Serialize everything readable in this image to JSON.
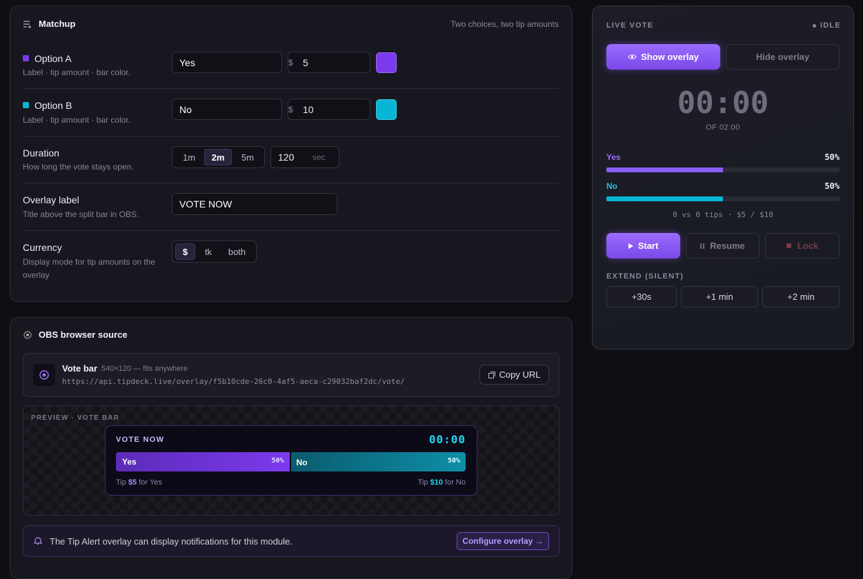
{
  "matchup": {
    "title": "Matchup",
    "hint": "Two choices, two tip amounts",
    "options": [
      {
        "name": "Option A",
        "description": "Label · tip amount · bar color.",
        "label": "Yes",
        "currency": "$",
        "amount": "5",
        "color": "#7c3aed"
      },
      {
        "name": "Option B",
        "description": "Label · tip amount · bar color.",
        "label": "No",
        "currency": "$",
        "amount": "10",
        "color": "#06b6d4"
      }
    ],
    "duration": {
      "name": "Duration",
      "description": "How long the vote stays open.",
      "presets": [
        "1m",
        "2m",
        "5m"
      ],
      "selected": 1,
      "seconds": "120",
      "unit": "sec"
    },
    "overlay_label": {
      "name": "Overlay label",
      "description": "Title above the split bar in OBS.",
      "value": "VOTE NOW"
    },
    "currency": {
      "name": "Currency",
      "description": "Display mode for tip amounts on the overlay",
      "modes": [
        "$",
        "tk",
        "both"
      ],
      "selected": 0
    }
  },
  "obs": {
    "title": "OBS browser source",
    "source": {
      "name": "Vote bar",
      "size": "540×120 — fits anywhere",
      "url": "https://api.tipdeck.live/overlay/f5b10cde-26c0-4af5-aeca-c29032baf2dc/vote/",
      "copy": "Copy URL"
    },
    "preview": {
      "caption": "PREVIEW · VOTE BAR",
      "title": "VOTE NOW",
      "timer": "00:00",
      "segments": [
        {
          "name": "Yes",
          "share": {
            "value": 50,
            "label": "50%"
          }
        },
        {
          "name": "No",
          "share": {
            "value": 50,
            "label": "50%"
          }
        }
      ],
      "tips": [
        {
          "prefix": "Tip",
          "amount": "$5",
          "suffix": "for Yes"
        },
        {
          "prefix": "Tip",
          "amount": "$10",
          "suffix": "for No"
        }
      ]
    },
    "alert": {
      "text": "The Tip Alert overlay can display notifications for this module.",
      "action": "Configure overlay →"
    }
  },
  "live_vote": {
    "title": "LIVE VOTE",
    "status": "IDLE",
    "show": "Show overlay",
    "hide": "Hide overlay",
    "timer": "00:00",
    "of": "OF 02:00",
    "results": [
      {
        "name": "Yes",
        "share": {
          "value": 50,
          "label": "50%"
        }
      },
      {
        "name": "No",
        "share": {
          "value": 50,
          "label": "50%"
        }
      }
    ],
    "summary": "0 vs 0 tips · $5 / $10",
    "start": "Start",
    "resume": "Resume",
    "lock": "Lock",
    "extend_title": "EXTEND (SILENT)",
    "extend": [
      "+30s",
      "+1 min",
      "+2 min"
    ]
  }
}
